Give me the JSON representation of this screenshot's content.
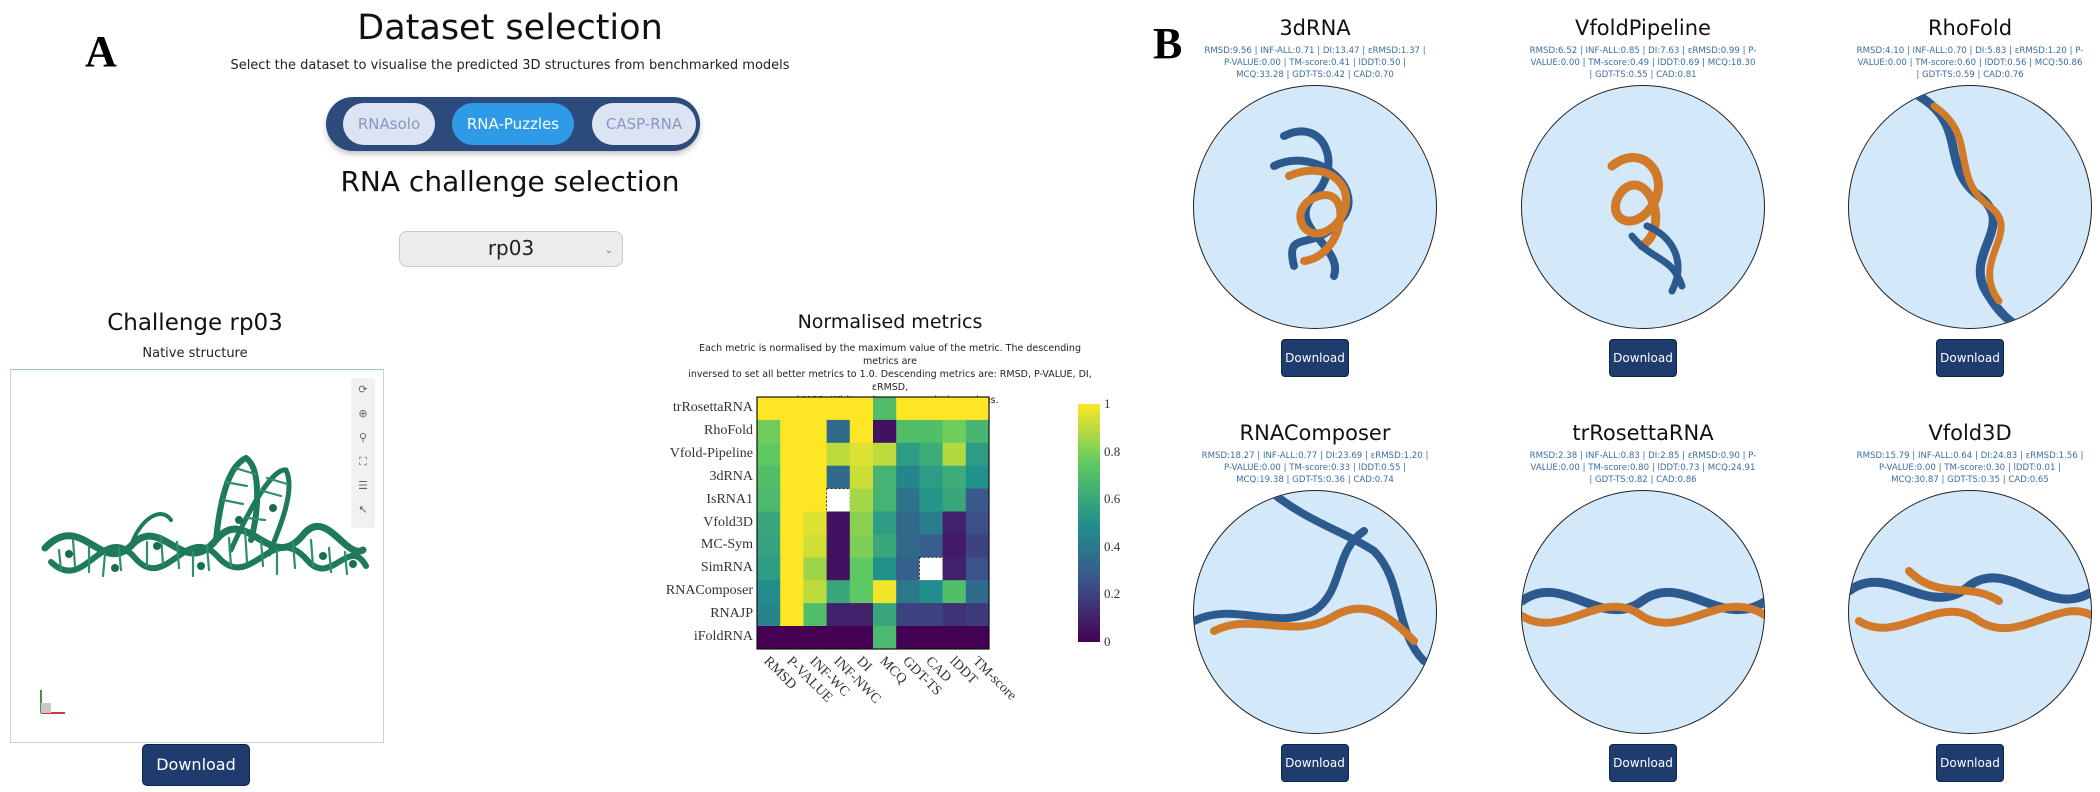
{
  "panels": {
    "a_label": "A",
    "b_label": "B"
  },
  "dataset": {
    "title": "Dataset selection",
    "subtitle": "Select the dataset to visualise the predicted 3D structures from benchmarked models",
    "options": [
      {
        "label": "RNAsolo",
        "selected": false
      },
      {
        "label": "RNA-Puzzles",
        "selected": true
      },
      {
        "label": "CASP-RNA",
        "selected": false
      }
    ]
  },
  "challenge": {
    "title": "RNA challenge selection",
    "selected": "rp03"
  },
  "native": {
    "title": "Challenge rp03",
    "subtitle": "Native structure",
    "download_label": "Download",
    "color": "#1e7a58"
  },
  "heatmap": {
    "title": "Normalised metrics",
    "description_lines": [
      "Each metric is normalised by the maximum value of the metric. The descending metrics are",
      "inversed to set all better metrics to 1.0. Descending metrics are: RMSD, P-VALUE, DI, εRMSD,",
      "and MCQ. White values mean missing values."
    ]
  },
  "chart_data": {
    "type": "heatmap",
    "title": "Normalised metrics",
    "rows": [
      "trRosettaRNA",
      "RhoFold",
      "Vfold-Pipeline",
      "3dRNA",
      "IsRNA1",
      "Vfold3D",
      "MC-Sym",
      "SimRNA",
      "RNAComposer",
      "RNAJP",
      "iFoldRNA"
    ],
    "columns": [
      "RMSD",
      "P-VALUE",
      "INF-WC",
      "INF-NWC",
      "DI",
      "MCQ",
      "GDT-TS",
      "CAD",
      "lDDT",
      "TM-score"
    ],
    "values": [
      [
        1.0,
        1.0,
        1.0,
        1.0,
        1.0,
        0.7,
        1.0,
        1.0,
        1.0,
        1.0
      ],
      [
        0.78,
        1.0,
        1.0,
        0.35,
        1.0,
        0.05,
        0.7,
        0.7,
        0.78,
        0.66
      ],
      [
        0.75,
        1.0,
        1.0,
        0.9,
        0.95,
        0.9,
        0.55,
        0.62,
        0.88,
        0.55
      ],
      [
        0.7,
        1.0,
        1.0,
        0.35,
        0.92,
        0.65,
        0.45,
        0.55,
        0.62,
        0.5
      ],
      [
        0.68,
        1.0,
        1.0,
        null,
        0.86,
        0.65,
        0.38,
        0.52,
        0.6,
        0.28
      ],
      [
        0.6,
        1.0,
        0.95,
        0.05,
        0.82,
        0.55,
        0.34,
        0.42,
        0.1,
        0.24
      ],
      [
        0.58,
        1.0,
        0.93,
        0.05,
        0.8,
        0.6,
        0.34,
        0.3,
        0.08,
        0.2
      ],
      [
        0.55,
        1.0,
        0.85,
        0.05,
        0.75,
        0.5,
        0.3,
        null,
        0.1,
        0.25
      ],
      [
        0.48,
        1.0,
        0.9,
        0.6,
        0.75,
        0.98,
        0.4,
        0.48,
        0.7,
        0.35
      ],
      [
        0.45,
        1.0,
        0.7,
        0.1,
        0.1,
        0.6,
        0.2,
        0.2,
        0.15,
        0.18
      ],
      [
        0.0,
        0.0,
        0.0,
        0.0,
        0.0,
        0.68,
        0.0,
        0.0,
        0.0,
        0.0
      ]
    ],
    "colorbar": {
      "range": [
        0,
        1
      ],
      "ticks": [
        "0",
        "0.2",
        "0.4",
        "0.6",
        "0.8",
        "1"
      ]
    },
    "colorscale": "viridis",
    "missing_color": "#ffffff"
  },
  "models": [
    {
      "name": "3dRNA",
      "metrics": "RMSD:9.56 | INF-ALL:0.71 | DI:13.47 | εRMSD:1.37 | P-VALUE:0.00 | TM-score:0.41 | lDDT:0.50 | MCQ:33.28 | GDT-TS:0.42 | CAD:0.70",
      "download_label": "Download"
    },
    {
      "name": "VfoldPipeline",
      "metrics": "RMSD:6.52 | INF-ALL:0.85 | DI:7.63 | εRMSD:0.99 | P-VALUE:0.00 | TM-score:0.49 | lDDT:0.69 | MCQ:18.30 | GDT-TS:0.55 | CAD:0.81",
      "download_label": "Download"
    },
    {
      "name": "RhoFold",
      "metrics": "RMSD:4.10 | INF-ALL:0.70 | DI:5.83 | εRMSD:1.20 | P-VALUE:0.00 | TM-score:0.60 | lDDT:0.56 | MCQ:50.86 | GDT-TS:0.59 | CAD:0.76",
      "download_label": "Download"
    },
    {
      "name": "RNAComposer",
      "metrics": "RMSD:18.27 | INF-ALL:0.77 | DI:23.69 | εRMSD:1.20 | P-VALUE:0.00 | TM-score:0.33 | lDDT:0.55 | MCQ:19.38 | GDT-TS:0.36 | CAD:0.74",
      "download_label": "Download"
    },
    {
      "name": "trRosettaRNA",
      "metrics": "RMSD:2.38 | INF-ALL:0.83 | DI:2.85 | εRMSD:0.90 | P-VALUE:0.00 | TM-score:0.80 | lDDT:0.73 | MCQ:24.91 | GDT-TS:0.82 | CAD:0.86",
      "download_label": "Download"
    },
    {
      "name": "Vfold3D",
      "metrics": "RMSD:15.79 | INF-ALL:0.64 | DI:24.83 | εRMSD:1.56 | P-VALUE:0.00 | TM-score:0.30 | lDDT:0.01 | MCQ:30.87 | GDT-TS:0.35 | CAD:0.65",
      "download_label": "Download"
    }
  ],
  "structure_colors": {
    "native": "#2d5a8e",
    "predicted": "#d07a2a",
    "background": "#d3e8f9"
  }
}
